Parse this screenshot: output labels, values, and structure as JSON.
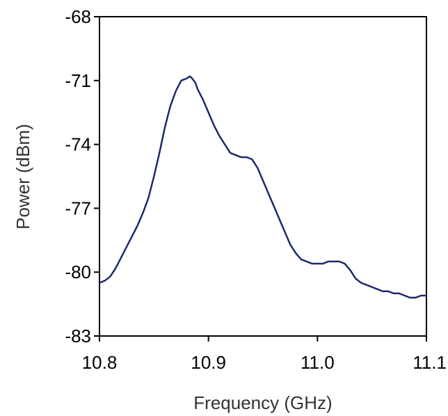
{
  "chart_data": {
    "type": "line",
    "title": "",
    "xlabel": "Frequency (GHz)",
    "ylabel": "Power (dBm)",
    "xlim": [
      10.8,
      11.1
    ],
    "ylim": [
      -83,
      -68
    ],
    "x_ticks": [
      10.8,
      10.9,
      11.0,
      11.1
    ],
    "x_tick_labels": [
      "10.8",
      "10.9",
      "11.0",
      "11.1"
    ],
    "y_ticks": [
      -83,
      -80,
      -77,
      -74,
      -71,
      -68
    ],
    "y_tick_labels": [
      "-83",
      "-80",
      "-77",
      "-74",
      "-71",
      "-68"
    ],
    "grid": false,
    "legend": "none",
    "line_color": "#1f2a6b",
    "series": [
      {
        "x": [
          10.8,
          10.805,
          10.81,
          10.815,
          10.82,
          10.825,
          10.83,
          10.835,
          10.84,
          10.845,
          10.85,
          10.855,
          10.86,
          10.865,
          10.87,
          10.875,
          10.88,
          10.883,
          10.885,
          10.888,
          10.89,
          10.895,
          10.9,
          10.905,
          10.91,
          10.915,
          10.92,
          10.925,
          10.93,
          10.935,
          10.94,
          10.945,
          10.95,
          10.955,
          10.96,
          10.965,
          10.97,
          10.975,
          10.98,
          10.985,
          10.99,
          10.995,
          11.0,
          11.005,
          11.01,
          11.015,
          11.02,
          11.025,
          11.03,
          11.035,
          11.04,
          11.045,
          11.05,
          11.055,
          11.06,
          11.065,
          11.07,
          11.075,
          11.08,
          11.085,
          11.09,
          11.095,
          11.1
        ],
        "y": [
          -80.5,
          -80.4,
          -80.2,
          -79.8,
          -79.3,
          -78.8,
          -78.3,
          -77.8,
          -77.2,
          -76.5,
          -75.5,
          -74.4,
          -73.2,
          -72.2,
          -71.5,
          -71.0,
          -70.9,
          -70.8,
          -70.9,
          -71.1,
          -71.4,
          -71.9,
          -72.5,
          -73.1,
          -73.6,
          -74.0,
          -74.4,
          -74.5,
          -74.6,
          -74.6,
          -74.7,
          -75.1,
          -75.7,
          -76.3,
          -76.9,
          -77.5,
          -78.1,
          -78.7,
          -79.1,
          -79.4,
          -79.5,
          -79.6,
          -79.6,
          -79.6,
          -79.5,
          -79.5,
          -79.5,
          -79.6,
          -79.9,
          -80.3,
          -80.5,
          -80.6,
          -80.7,
          -80.8,
          -80.9,
          -80.9,
          -81.0,
          -81.0,
          -81.1,
          -81.2,
          -81.2,
          -81.1,
          -81.1
        ]
      }
    ]
  }
}
